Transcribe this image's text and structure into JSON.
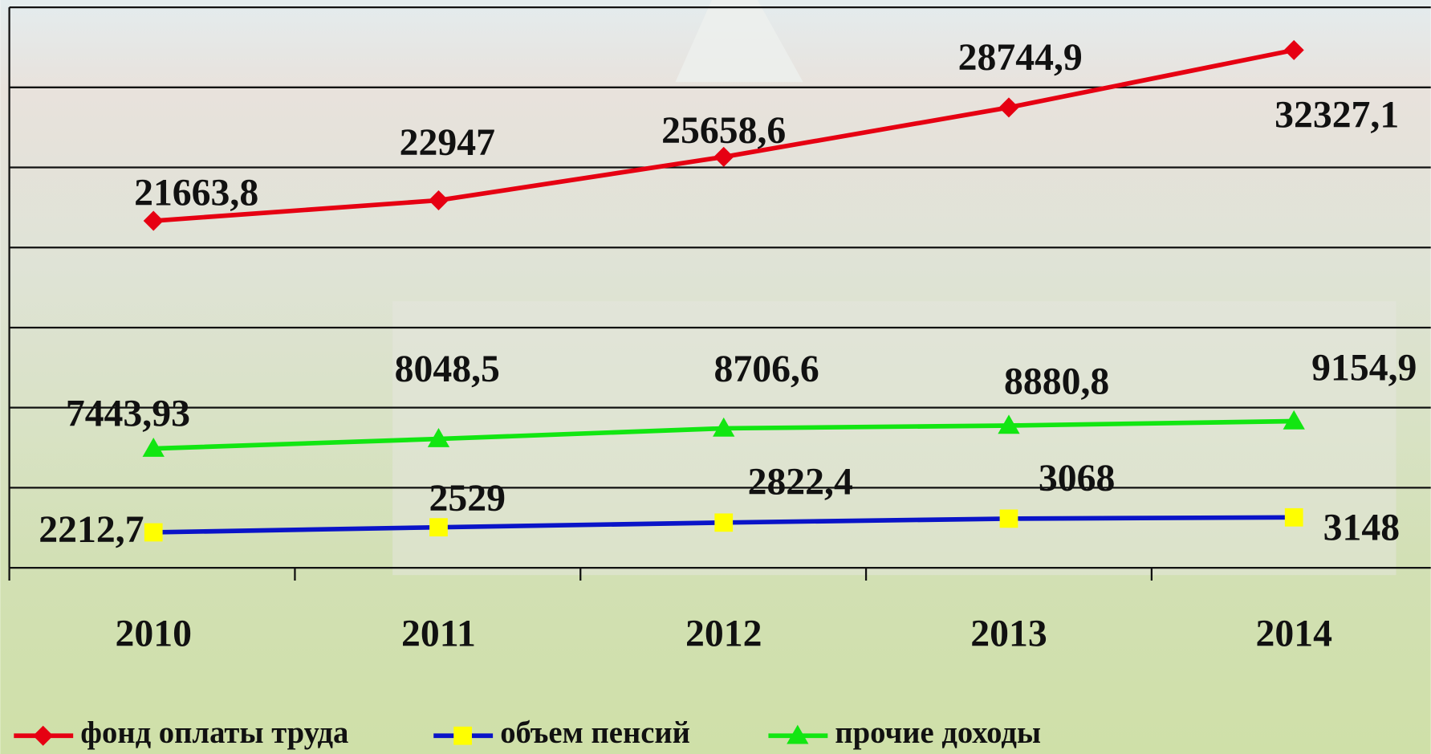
{
  "chart_data": {
    "type": "line",
    "categories": [
      "2010",
      "2011",
      "2012",
      "2013",
      "2014"
    ],
    "series": [
      {
        "name": "фонд оплаты труда",
        "color": "#e60012",
        "marker": "diamond",
        "marker_color": "#e60012",
        "values": [
          21663.8,
          22947,
          25658.6,
          28744.9,
          32327.1
        ],
        "value_labels": [
          "21663,8",
          "22947",
          "25658,6",
          "28744,9",
          "32327,1"
        ]
      },
      {
        "name": "объем пенсий",
        "color": "#0a14c8",
        "marker": "square",
        "marker_color": "#ffff00",
        "values": [
          2212.7,
          2529,
          2822.4,
          3068,
          3148
        ],
        "value_labels": [
          "2212,7",
          "2529",
          "2822,4",
          "3068",
          "3148"
        ]
      },
      {
        "name": "прочие доходы",
        "color": "#12e612",
        "marker": "triangle",
        "marker_color": "#12e612",
        "values": [
          7443.93,
          8048.5,
          8706.6,
          8880.8,
          9154.9
        ],
        "value_labels": [
          "7443,93",
          "8048,5",
          "8706,6",
          "8880,8",
          "9154,9"
        ]
      }
    ],
    "ylim": [
      0,
      35000
    ],
    "yticks": [
      0,
      5000,
      10000,
      15000,
      20000,
      25000,
      30000,
      35000
    ],
    "grid": true,
    "legend": "bottom"
  }
}
